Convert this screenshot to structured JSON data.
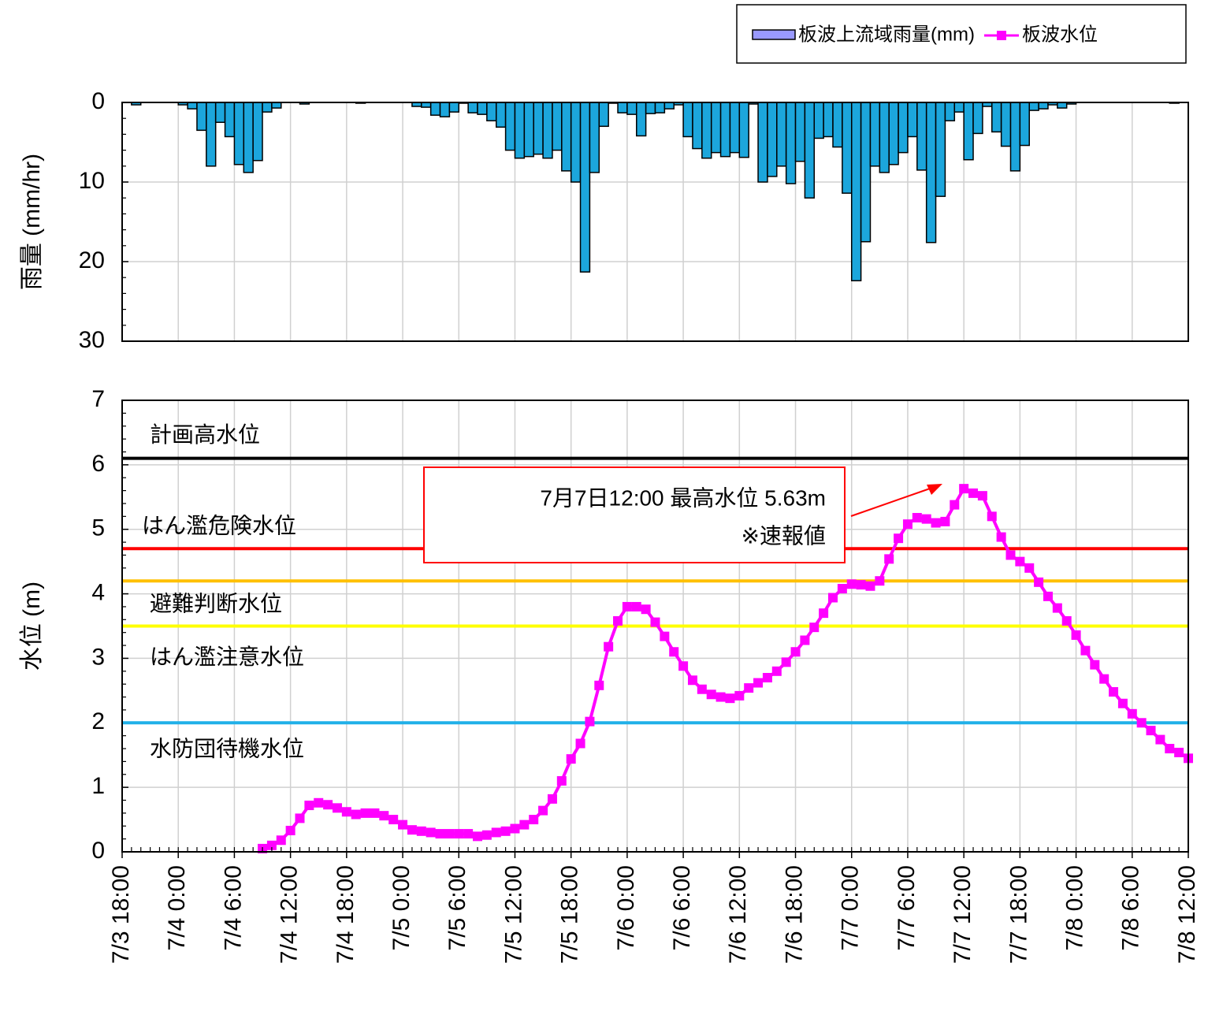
{
  "chart_data": [
    {
      "type": "bar",
      "ylabel": "雨量 (mm/hr)",
      "ylim": [
        0,
        30
      ],
      "yticks": [
        0,
        10,
        20,
        30
      ],
      "y_inverted": true,
      "grid": true,
      "series": [
        {
          "name": "板波上流域雨量(mm)",
          "color": "#1ca6dc",
          "legend_color": "#9999ff",
          "values": [
            null,
            0,
            0.3,
            0,
            0,
            0,
            0,
            0.3,
            0.8,
            3.5,
            8,
            2.5,
            4.3,
            7.8,
            8.8,
            7.3,
            1.2,
            0.7,
            0,
            0,
            0.2,
            0,
            0,
            0,
            0,
            0,
            0.1,
            0,
            0,
            0,
            0,
            0,
            0.5,
            0.6,
            1.6,
            1.8,
            1.2,
            0.1,
            1.3,
            1.5,
            2.3,
            3.1,
            6,
            7,
            6.8,
            6.5,
            7,
            6,
            8.6,
            10,
            21.3,
            8.8,
            3,
            0.1,
            1.3,
            1.5,
            4.2,
            1.4,
            1.3,
            0.8,
            0.3,
            4.3,
            5.8,
            7,
            6.3,
            6.8,
            6.3,
            6.9,
            0.2,
            10,
            9.3,
            8,
            10.2,
            7.4,
            12,
            4.5,
            4.3,
            5.6,
            11.4,
            22.4,
            17.5,
            8,
            8.8,
            7.8,
            6.3,
            4.3,
            8.5,
            17.6,
            11.8,
            2.3,
            1.2,
            7.2,
            3.9,
            0.5,
            3.7,
            5.5,
            8.6,
            5.4,
            1,
            0.8,
            0.3,
            0.7,
            0.2,
            0,
            0,
            0,
            0,
            0,
            0,
            0,
            0,
            0,
            0,
            0.1,
            0
          ]
        }
      ]
    },
    {
      "type": "line",
      "ylabel": "水位 (m)",
      "ylim": [
        0,
        7
      ],
      "yticks": [
        0,
        1,
        2,
        3,
        4,
        5,
        6,
        7
      ],
      "grid": true,
      "legend": "top-right",
      "x": [
        "7/3 18:00",
        null,
        null,
        null,
        null,
        null,
        "7/4 0:00",
        null,
        null,
        null,
        null,
        null,
        "7/4 6:00",
        null,
        null,
        null,
        null,
        null,
        "7/4 12:00",
        null,
        null,
        null,
        null,
        null,
        "7/4 18:00",
        null,
        null,
        null,
        null,
        null,
        "7/5 0:00",
        null,
        null,
        null,
        null,
        null,
        "7/5 6:00",
        null,
        null,
        null,
        null,
        null,
        "7/5 12:00",
        null,
        null,
        null,
        null,
        null,
        "7/5 18:00",
        null,
        null,
        null,
        null,
        null,
        "7/6 0:00",
        null,
        null,
        null,
        null,
        null,
        "7/6 6:00",
        null,
        null,
        null,
        null,
        null,
        "7/6 12:00",
        null,
        null,
        null,
        null,
        null,
        "7/6 18:00",
        null,
        null,
        null,
        null,
        null,
        "7/7 0:00",
        null,
        null,
        null,
        null,
        null,
        "7/7 6:00",
        null,
        null,
        null,
        null,
        null,
        "7/7 12:00",
        null,
        null,
        null,
        null,
        null,
        "7/7 18:00",
        null,
        null,
        null,
        null,
        null,
        "7/8 0:00",
        null,
        null,
        null,
        null,
        null,
        "7/8 6:00",
        null,
        null,
        null,
        null,
        null,
        "7/8 12:00"
      ],
      "series": [
        {
          "name": "板波水位",
          "color": "#ff00ff",
          "marker": "square",
          "values": [
            null,
            null,
            null,
            null,
            null,
            null,
            null,
            null,
            null,
            null,
            null,
            null,
            null,
            null,
            null,
            0.05,
            0.1,
            0.18,
            0.33,
            0.52,
            0.72,
            0.76,
            0.73,
            0.68,
            0.62,
            0.58,
            0.6,
            0.6,
            0.56,
            0.5,
            0.42,
            0.34,
            0.32,
            0.3,
            0.28,
            0.28,
            0.28,
            0.28,
            0.24,
            0.26,
            0.3,
            0.32,
            0.36,
            0.42,
            0.5,
            0.64,
            0.82,
            1.1,
            1.44,
            1.68,
            2.02,
            2.58,
            3.18,
            3.58,
            3.8,
            3.8,
            3.76,
            3.56,
            3.34,
            3.1,
            2.88,
            2.66,
            2.52,
            2.44,
            2.4,
            2.38,
            2.42,
            2.54,
            2.62,
            2.7,
            2.8,
            2.94,
            3.1,
            3.28,
            3.48,
            3.7,
            3.94,
            4.08,
            4.15,
            4.14,
            4.12,
            4.2,
            4.54,
            4.86,
            5.08,
            5.18,
            5.16,
            5.1,
            5.12,
            5.38,
            5.63,
            5.56,
            5.52,
            5.2,
            4.88,
            4.6,
            4.5,
            4.4,
            4.18,
            3.96,
            3.78,
            3.58,
            3.36,
            3.12,
            2.9,
            2.68,
            2.48,
            2.3,
            2.14,
            2.0,
            1.88,
            1.74,
            1.6,
            1.54,
            1.45
          ]
        }
      ],
      "reference_lines": [
        {
          "label": "計画高水位",
          "value": 6.1,
          "color": "#000000"
        },
        {
          "label": "はん濫危険水位",
          "value": 4.7,
          "color": "#ff0000"
        },
        {
          "label": "避難判断水位",
          "value": 4.2,
          "color": "#ffc000"
        },
        {
          "label": "はん濫注意水位",
          "value": 3.5,
          "color": "#ffff00"
        },
        {
          "label": "水防団待機水位",
          "value": 2.0,
          "color": "#20b0e8"
        }
      ],
      "annotation": {
        "lines": [
          "7月7日12:00 最高水位 5.63m",
          "※速報値"
        ],
        "color": "#ff0000"
      }
    }
  ]
}
